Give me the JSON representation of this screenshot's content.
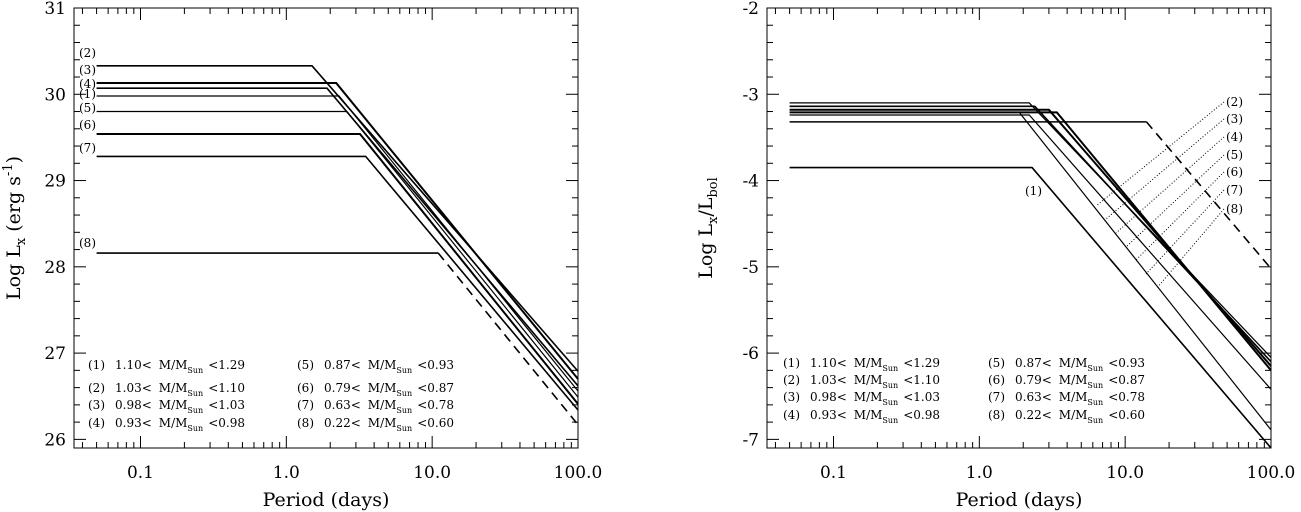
{
  "chart_data": [
    {
      "type": "line",
      "xlabel": "Period (days)",
      "ylabel": "Log L_x (erg s^-1)",
      "x_scale": "log",
      "xlim": [
        0.035,
        100.0
      ],
      "ylim": [
        25.9,
        31.0
      ],
      "x_ticks": [
        "0.1",
        "1.0",
        "10.0",
        "100.0"
      ],
      "x_tick_values": [
        0.1,
        1.0,
        10.0,
        100.0
      ],
      "y_ticks": [
        "26",
        "27",
        "28",
        "29",
        "30",
        "31"
      ],
      "y_tick_values": [
        26,
        27,
        28,
        29,
        30,
        31
      ],
      "grid": false,
      "series": [
        {
          "name": "(1)",
          "points": [
            [
              0.05,
              29.98
            ],
            [
              2.3,
              29.98
            ],
            [
              100.0,
              26.56
            ]
          ],
          "style": "solid",
          "width": 1.2
        },
        {
          "name": "(2)",
          "points": [
            [
              0.05,
              30.33
            ],
            [
              1.5,
              30.33
            ],
            [
              100.0,
              26.79
            ]
          ],
          "style": "solid",
          "width": 1.6
        },
        {
          "name": "(3)",
          "points": [
            [
              0.05,
              30.13
            ],
            [
              2.2,
              30.13
            ],
            [
              100.0,
              26.7
            ]
          ],
          "style": "solid",
          "width": 2.0
        },
        {
          "name": "(4)",
          "points": [
            [
              0.05,
              30.07
            ],
            [
              1.9,
              30.07
            ],
            [
              100.0,
              26.62
            ]
          ],
          "style": "solid",
          "width": 1.6
        },
        {
          "name": "(5)",
          "points": [
            [
              0.05,
              29.8
            ],
            [
              2.6,
              29.8
            ],
            [
              100.0,
              26.49
            ]
          ],
          "style": "solid",
          "width": 1.2
        },
        {
          "name": "(6)",
          "points": [
            [
              0.05,
              29.54
            ],
            [
              3.2,
              29.54
            ],
            [
              100.0,
              26.41
            ]
          ],
          "style": "solid",
          "width": 2.0
        },
        {
          "name": "(7)",
          "points": [
            [
              0.05,
              29.28
            ],
            [
              3.5,
              29.28
            ],
            [
              100.0,
              26.34
            ]
          ],
          "style": "solid",
          "width": 1.6
        },
        {
          "name": "(8)",
          "points": [
            [
              0.05,
              28.16
            ],
            [
              11.0,
              28.16
            ],
            [
              100.0,
              26.17
            ]
          ],
          "style": "solid-then-dashed",
          "width": 1.6
        }
      ],
      "labels": [
        "(1)",
        "(2)",
        "(3)",
        "(4)",
        "(5)",
        "(6)",
        "(7)",
        "(8)"
      ],
      "legend": [
        {
          "num": "(1)",
          "lo": "1.10<",
          "sym": "M/M",
          "sub": "Sun",
          "hi": "<1.29"
        },
        {
          "num": "(2)",
          "lo": "1.03<",
          "sym": "M/M",
          "sub": "Sun",
          "hi": "<1.10"
        },
        {
          "num": "(3)",
          "lo": "0.98<",
          "sym": "M/M",
          "sub": "Sun",
          "hi": "<1.03"
        },
        {
          "num": "(4)",
          "lo": "0.93<",
          "sym": "M/M",
          "sub": "Sun",
          "hi": "<0.98"
        },
        {
          "num": "(5)",
          "lo": "0.87<",
          "sym": "M/M",
          "sub": "Sun",
          "hi": "<0.93"
        },
        {
          "num": "(6)",
          "lo": "0.79<",
          "sym": "M/M",
          "sub": "Sun",
          "hi": "<0.87"
        },
        {
          "num": "(7)",
          "lo": "0.63<",
          "sym": "M/M",
          "sub": "Sun",
          "hi": "<0.78"
        },
        {
          "num": "(8)",
          "lo": "0.22<",
          "sym": "M/M",
          "sub": "Sun",
          "hi": "<0.60"
        }
      ],
      "legend_placement": "lower-left"
    },
    {
      "type": "line",
      "xlabel": "Period (days)",
      "ylabel": "Log L_x/L_bol",
      "x_scale": "log",
      "xlim": [
        0.035,
        100.0
      ],
      "ylim": [
        -7.1,
        -2.0
      ],
      "x_ticks": [
        "0.1",
        "1.0",
        "10.0",
        "100.0"
      ],
      "x_tick_values": [
        0.1,
        1.0,
        10.0,
        100.0
      ],
      "y_ticks": [
        "-2",
        "-3",
        "-4",
        "-5",
        "-6",
        "-7"
      ],
      "y_tick_values": [
        -2,
        -3,
        -4,
        -5,
        -6,
        -7
      ],
      "grid": false,
      "series": [
        {
          "name": "(1)",
          "points": [
            [
              0.05,
              -3.85
            ],
            [
              2.3,
              -3.85
            ],
            [
              100.0,
              -7.1
            ]
          ],
          "style": "solid",
          "width": 1.6
        },
        {
          "name": "(2)",
          "points": [
            [
              0.05,
              -3.1
            ],
            [
              2.2,
              -3.1
            ],
            [
              100.0,
              -6.05
            ]
          ],
          "style": "solid",
          "width": 1.2
        },
        {
          "name": "(3)",
          "points": [
            [
              0.05,
              -3.14
            ],
            [
              2.4,
              -3.14
            ],
            [
              100.0,
              -6.1
            ]
          ],
          "style": "solid",
          "width": 1.6
        },
        {
          "name": "(4)",
          "points": [
            [
              0.05,
              -3.18
            ],
            [
              3.0,
              -3.18
            ],
            [
              100.0,
              -6.15
            ]
          ],
          "style": "solid",
          "width": 2.0
        },
        {
          "name": "(5)",
          "points": [
            [
              0.05,
              -3.21
            ],
            [
              3.4,
              -3.21
            ],
            [
              100.0,
              -6.2
            ]
          ],
          "style": "solid",
          "width": 2.0
        },
        {
          "name": "(6)",
          "points": [
            [
              0.05,
              -3.24
            ],
            [
              2.2,
              -3.24
            ],
            [
              100.0,
              -6.42
            ]
          ],
          "style": "solid",
          "width": 1.2
        },
        {
          "name": "(7)",
          "points": [
            [
              0.05,
              -3.32
            ],
            [
              14.0,
              -3.32
            ],
            [
              100.0,
              -5.02
            ]
          ],
          "style": "solid-then-dashed",
          "width": 1.6
        },
        {
          "name": "(8)",
          "points": [
            [
              1.9,
              -3.22
            ],
            [
              100.0,
              -6.89
            ]
          ],
          "style": "solid",
          "width": 1.2
        }
      ],
      "labels": [
        "(1)",
        "(2)",
        "(3)",
        "(4)",
        "(5)",
        "(6)",
        "(7)",
        "(8)"
      ],
      "legend": [
        {
          "num": "(1)",
          "lo": "1.10<",
          "sym": "M/M",
          "sub": "Sun",
          "hi": "<1.29"
        },
        {
          "num": "(2)",
          "lo": "1.03<",
          "sym": "M/M",
          "sub": "Sun",
          "hi": "<1.10"
        },
        {
          "num": "(3)",
          "lo": "0.98<",
          "sym": "M/M",
          "sub": "Sun",
          "hi": "<1.03"
        },
        {
          "num": "(4)",
          "lo": "0.93<",
          "sym": "M/M",
          "sub": "Sun",
          "hi": "<0.98"
        },
        {
          "num": "(5)",
          "lo": "0.87<",
          "sym": "M/M",
          "sub": "Sun",
          "hi": "<0.93"
        },
        {
          "num": "(6)",
          "lo": "0.79<",
          "sym": "M/M",
          "sub": "Sun",
          "hi": "<0.87"
        },
        {
          "num": "(7)",
          "lo": "0.63<",
          "sym": "M/M",
          "sub": "Sun",
          "hi": "<0.78"
        },
        {
          "num": "(8)",
          "lo": "0.22<",
          "sym": "M/M",
          "sub": "Sun",
          "hi": "<0.60"
        }
      ],
      "legend_placement": "lower-left"
    }
  ]
}
